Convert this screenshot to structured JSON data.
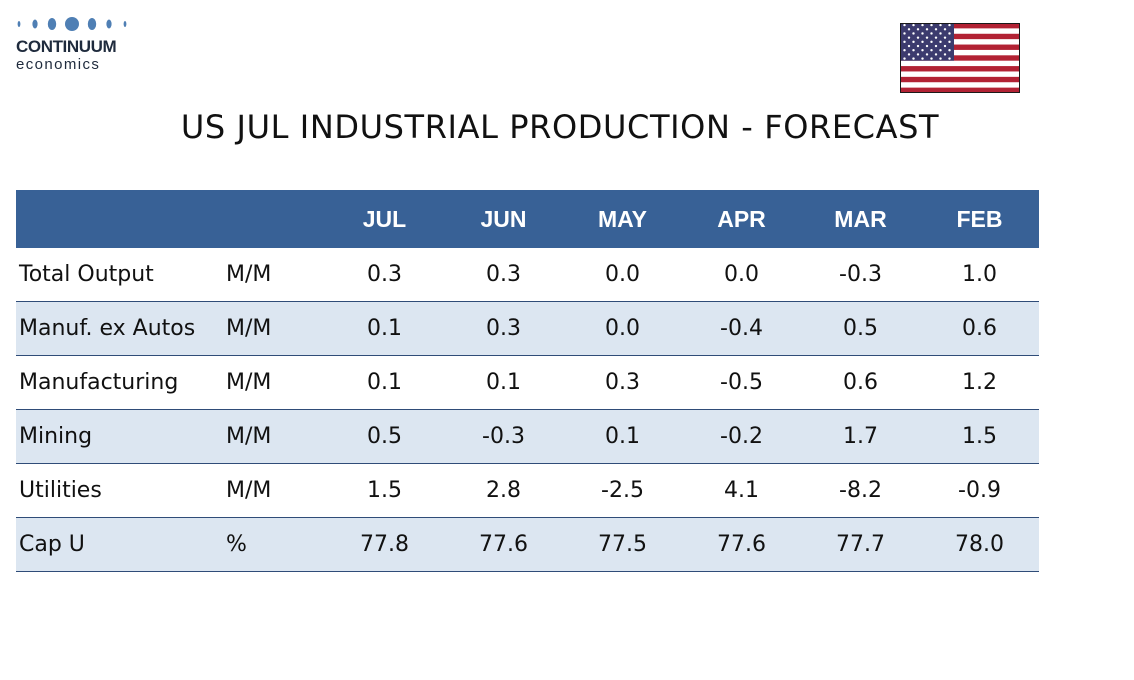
{
  "logo": {
    "name": "CONTINUUM",
    "sub": "economics"
  },
  "flag": {
    "name": "us-flag",
    "colors": {
      "red": "#b22234",
      "white": "#ffffff",
      "blue": "#3c3b6e"
    }
  },
  "title": "US JUL INDUSTRIAL PRODUCTION - FORECAST",
  "colors": {
    "header_bg": "#386196",
    "header_text": "#ffffff",
    "alt_row_bg": "#dce6f1",
    "row_divider": "#2f4c78"
  },
  "table": {
    "columns": [
      "JUL",
      "JUN",
      "MAY",
      "APR",
      "MAR",
      "FEB"
    ],
    "rows": [
      {
        "label": "Total Output",
        "unit": "M/M",
        "values": [
          "0.3",
          "0.3",
          "0.0",
          "0.0",
          "-0.3",
          "1.0"
        ]
      },
      {
        "label": "Manuf. ex Autos",
        "unit": "M/M",
        "values": [
          "0.1",
          "0.3",
          "0.0",
          "-0.4",
          "0.5",
          "0.6"
        ]
      },
      {
        "label": "Manufacturing",
        "unit": "M/M",
        "values": [
          "0.1",
          "0.1",
          "0.3",
          "-0.5",
          "0.6",
          "1.2"
        ]
      },
      {
        "label": "Mining",
        "unit": "M/M",
        "values": [
          "0.5",
          "-0.3",
          "0.1",
          "-0.2",
          "1.7",
          "1.5"
        ]
      },
      {
        "label": "Utilities",
        "unit": "M/M",
        "values": [
          "1.5",
          "2.8",
          "-2.5",
          "4.1",
          "-8.2",
          "-0.9"
        ]
      },
      {
        "label": "Cap U",
        "unit": "%",
        "values": [
          "77.8",
          "77.6",
          "77.5",
          "77.6",
          "77.7",
          "78.0"
        ]
      }
    ]
  }
}
